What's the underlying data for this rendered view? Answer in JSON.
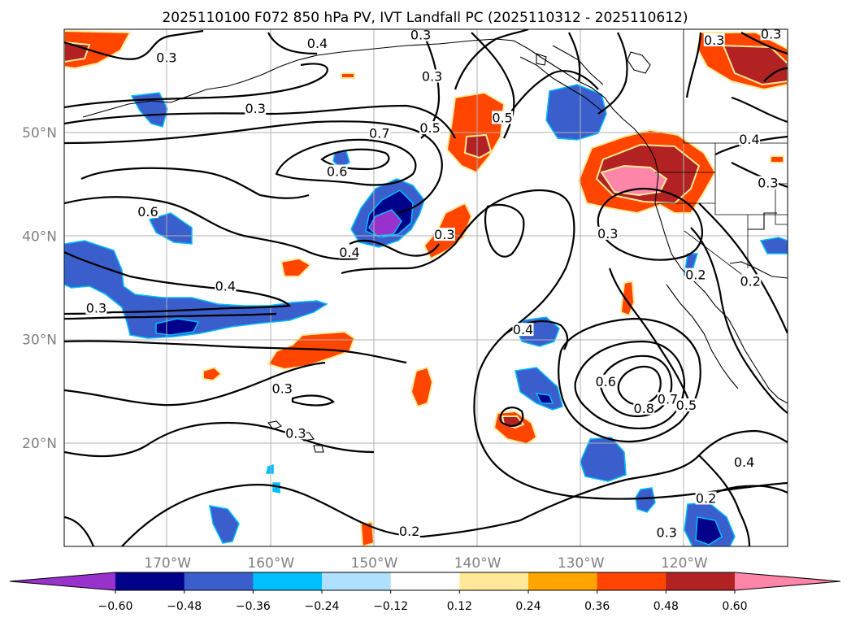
{
  "title": "2025110100 F072 850 hPa PV, IVT Landfall PC (2025110312 - 2025110612)",
  "map": {
    "lon_range": [
      -180,
      -110
    ],
    "lat_range": [
      10,
      60
    ],
    "lon_ticks": [
      {
        "value": -170,
        "label": "170°W"
      },
      {
        "value": -160,
        "label": "160°W"
      },
      {
        "value": -150,
        "label": "150°W"
      },
      {
        "value": -140,
        "label": "140°W"
      },
      {
        "value": -130,
        "label": "130°W"
      },
      {
        "value": -120,
        "label": "120°W"
      }
    ],
    "lat_ticks": [
      {
        "value": 50,
        "label": "50°N"
      },
      {
        "value": 40,
        "label": "40°N"
      },
      {
        "value": 30,
        "label": "30°N"
      },
      {
        "value": 20,
        "label": "20°N"
      }
    ]
  },
  "colorbar": {
    "levels": [
      "−0.60",
      "−0.48",
      "−0.36",
      "−0.24",
      "−0.12",
      "0.12",
      "0.24",
      "0.36",
      "0.48",
      "0.60"
    ],
    "colors": [
      "#9932cc",
      "#00008b",
      "#3a5fcd",
      "#00bfff",
      "#b0e0ff",
      "#ffffff",
      "#ffe999",
      "#ffa500",
      "#ff4500",
      "#b22222",
      "#ff86a8"
    ]
  },
  "contour_labels": [
    {
      "text": "0.3",
      "lon": -161.5,
      "lat": 52.3
    },
    {
      "text": "0.4",
      "lon": -155.5,
      "lat": 58.6
    },
    {
      "text": "0.3",
      "lon": -145.5,
      "lat": 59.4
    },
    {
      "text": "0.3",
      "lon": -144.4,
      "lat": 55.4
    },
    {
      "text": "0.7",
      "lon": -149.5,
      "lat": 49.9
    },
    {
      "text": "0.5",
      "lon": -144.6,
      "lat": 50.4
    },
    {
      "text": "0.5",
      "lon": -137.6,
      "lat": 51.4
    },
    {
      "text": "0.6",
      "lon": -153.6,
      "lat": 46.2
    },
    {
      "text": "0.6",
      "lon": -171.9,
      "lat": 42.3
    },
    {
      "text": "0.4",
      "lon": -152.4,
      "lat": 38.4
    },
    {
      "text": "0.3",
      "lon": -143.2,
      "lat": 40.1
    },
    {
      "text": "0.4",
      "lon": -164.4,
      "lat": 35.1
    },
    {
      "text": "0.3",
      "lon": -176.9,
      "lat": 33.0
    },
    {
      "text": "0.3",
      "lon": -170.1,
      "lat": 57.2
    },
    {
      "text": "0.3",
      "lon": -127.4,
      "lat": 40.2
    },
    {
      "text": "0.4",
      "lon": -135.6,
      "lat": 30.9
    },
    {
      "text": "0.6",
      "lon": -127.6,
      "lat": 25.9
    },
    {
      "text": "0.8",
      "lon": -123.9,
      "lat": 23.3
    },
    {
      "text": "0.7",
      "lon": -121.6,
      "lat": 24.2
    },
    {
      "text": "0.5",
      "lon": -119.8,
      "lat": 23.6
    },
    {
      "text": "0.3",
      "lon": -158.9,
      "lat": 25.2
    },
    {
      "text": "0.3",
      "lon": -157.6,
      "lat": 20.9
    },
    {
      "text": "0.4",
      "lon": -114.2,
      "lat": 18.1
    },
    {
      "text": "0.2",
      "lon": -113.6,
      "lat": 35.6
    },
    {
      "text": "0.2",
      "lon": -118.9,
      "lat": 36.2
    },
    {
      "text": "0.3",
      "lon": -111.9,
      "lat": 45.1
    },
    {
      "text": "0.4",
      "lon": -113.7,
      "lat": 49.3
    },
    {
      "text": "0.3",
      "lon": -117.1,
      "lat": 58.9
    },
    {
      "text": "0.3",
      "lon": -111.6,
      "lat": 59.5
    },
    {
      "text": "0.2",
      "lon": -117.9,
      "lat": 14.6
    },
    {
      "text": "0.2",
      "lon": -146.6,
      "lat": 11.4
    },
    {
      "text": "0.3",
      "lon": -121.7,
      "lat": 11.3
    }
  ]
}
